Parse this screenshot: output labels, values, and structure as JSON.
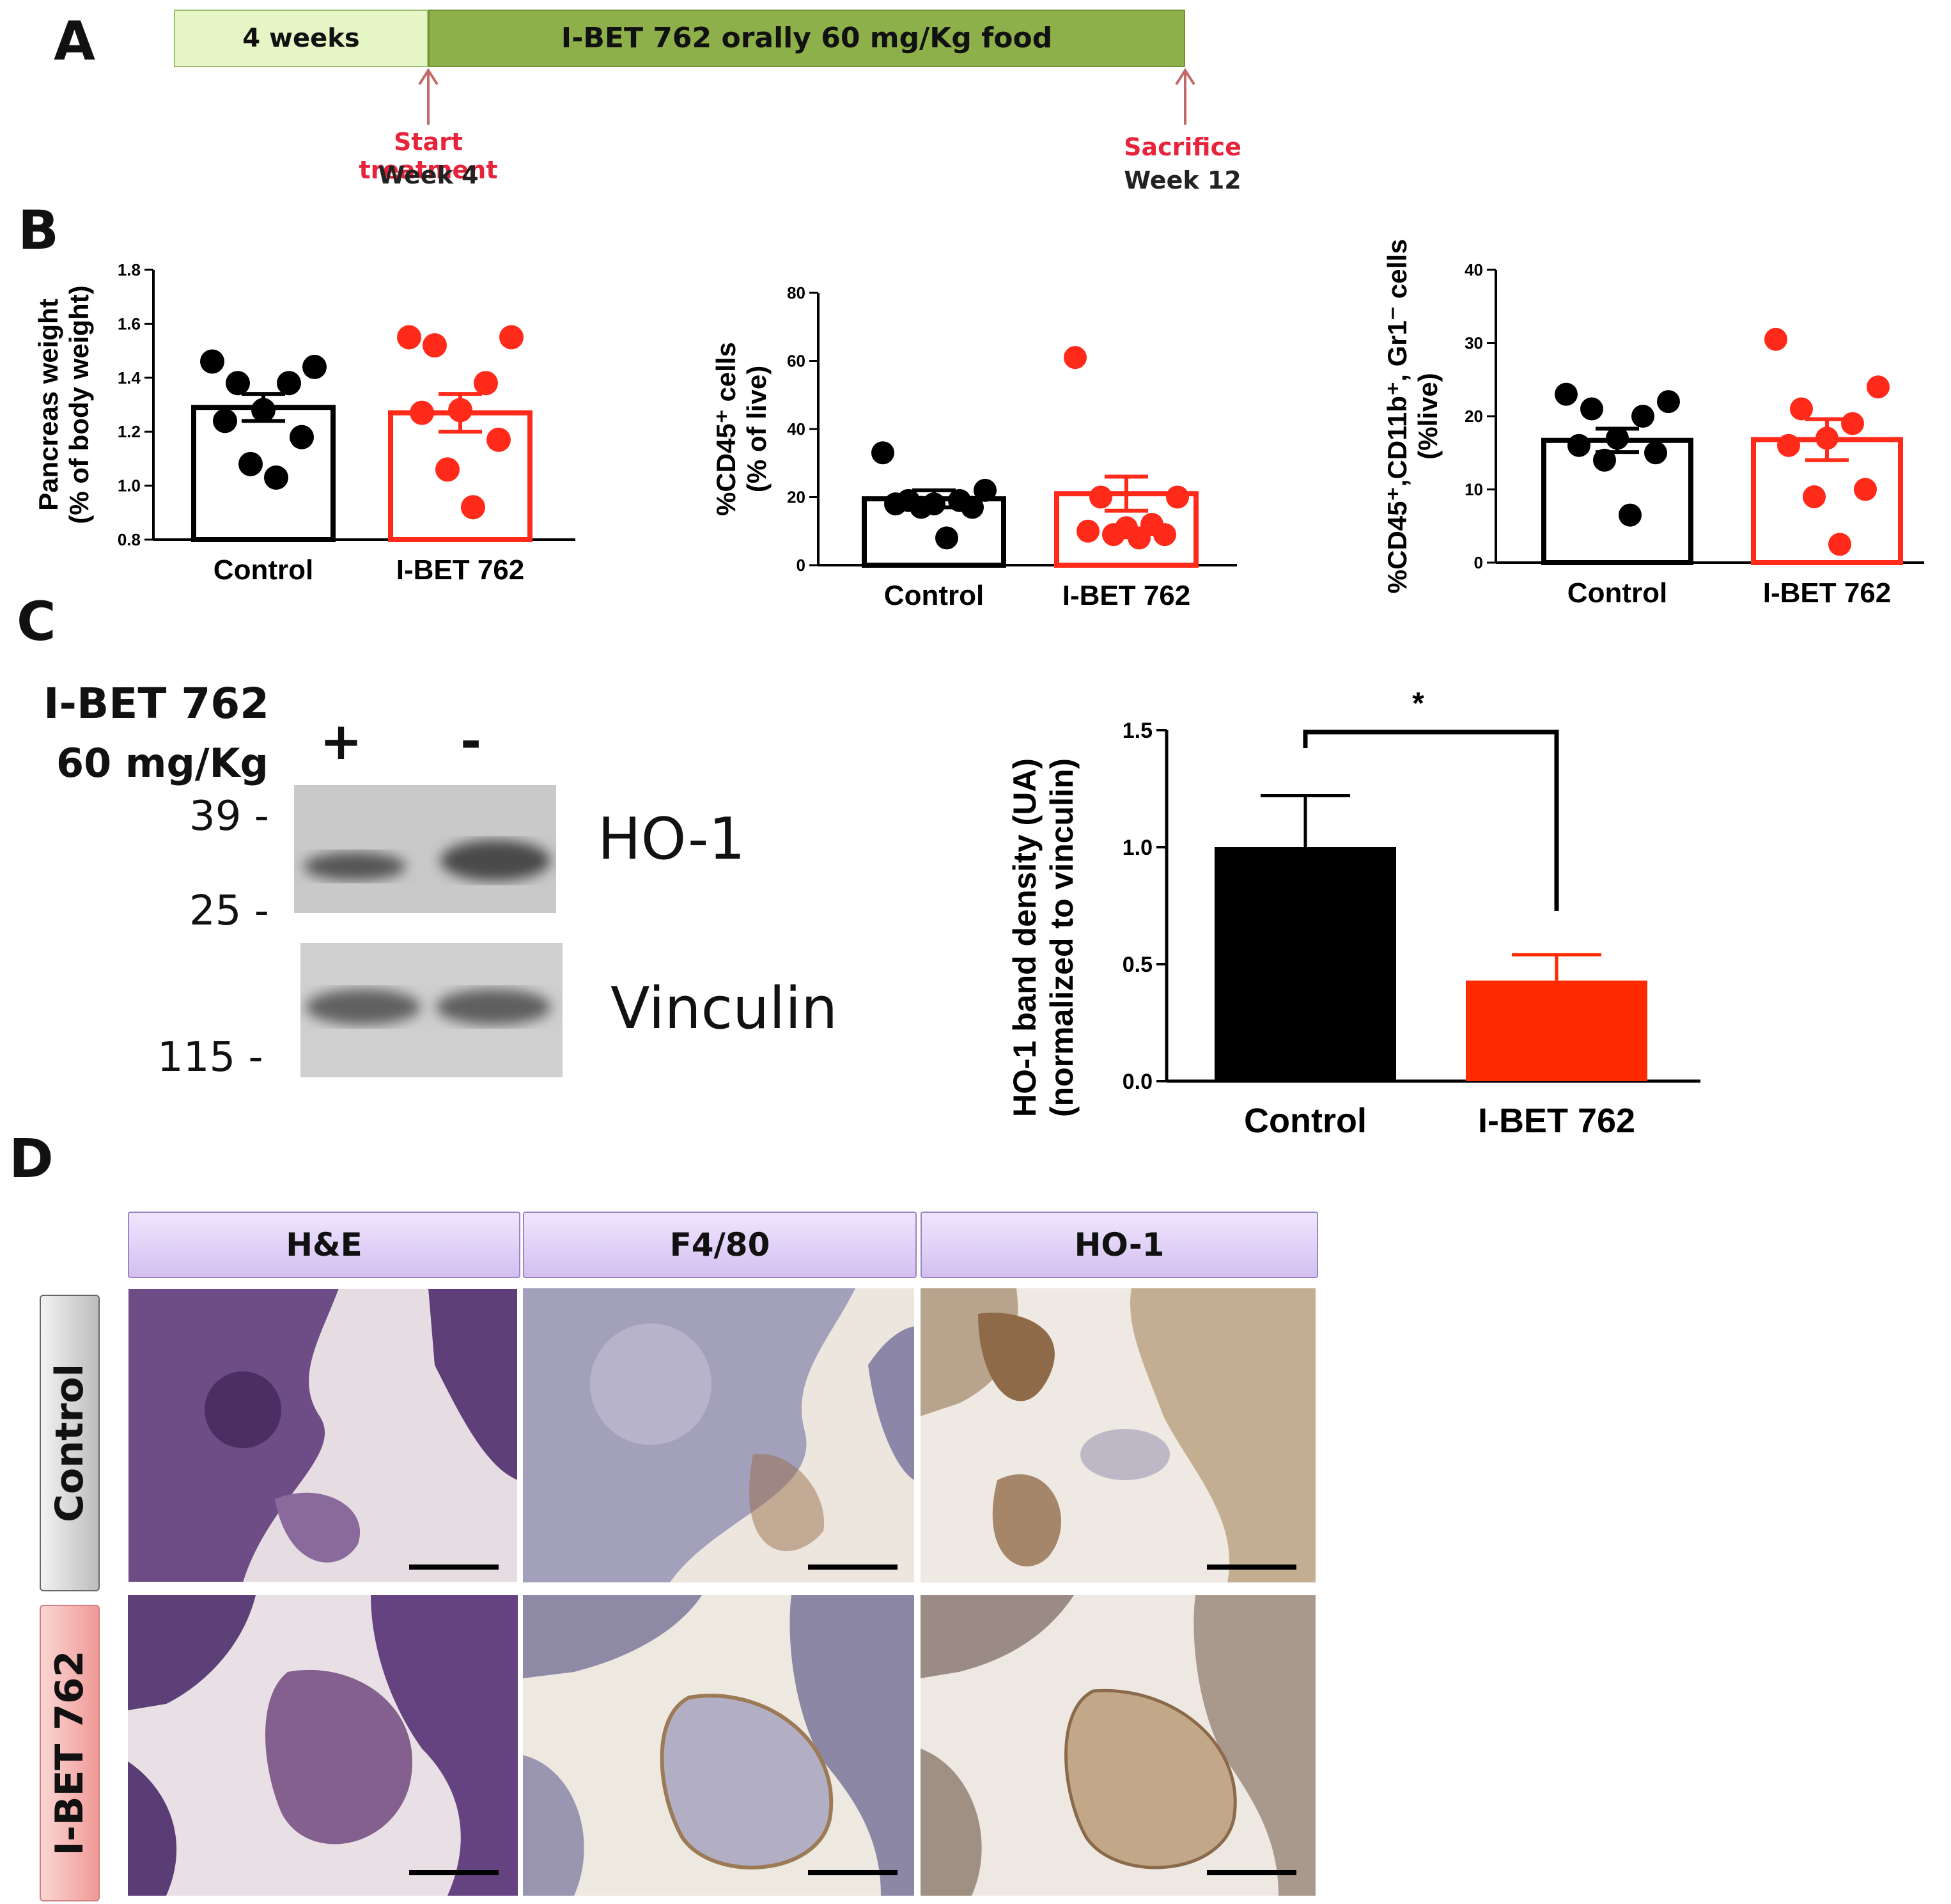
{
  "panel_letters": {
    "a": "A",
    "b": "B",
    "c": "C",
    "d": "D"
  },
  "timeline": {
    "segment1": "4 weeks",
    "segment2": "I-BET 762 orally 60 mg/Kg food",
    "start_label": "Start treatment",
    "start_week": "Week 4",
    "end_label": "Sacrifice",
    "end_week": "Week 12",
    "color_light": "#e6f5c6",
    "color_dark": "#8db04a",
    "arrow_color": "#c06a6a",
    "label_red": "#e8243c"
  },
  "chart_data": [
    {
      "type": "bar",
      "ylabel_lines": [
        "Pancreas weight",
        "(% of body weight)"
      ],
      "categories": [
        "Control",
        "I-BET 762"
      ],
      "ylim": [
        0.8,
        1.8
      ],
      "yticks": [
        "0.8",
        "1.0",
        "1.2",
        "1.4",
        "1.6",
        "1.8"
      ],
      "series": [
        {
          "values": [
            1.29,
            1.27
          ],
          "sem": [
            0.05,
            0.07
          ],
          "colors": [
            "#000000",
            "#ff2a1a"
          ]
        }
      ],
      "points": [
        [
          1.46,
          1.44,
          1.38,
          1.38,
          1.28,
          1.24,
          1.18,
          1.08,
          1.03
        ],
        [
          1.55,
          1.55,
          1.52,
          1.38,
          1.28,
          1.27,
          1.17,
          1.06,
          0.92
        ]
      ],
      "grid": false
    },
    {
      "type": "bar",
      "ylabel_lines": [
        "%CD45⁺ cells",
        "(% of live)"
      ],
      "categories": [
        "Control",
        "I-BET 762"
      ],
      "ylim": [
        0,
        80
      ],
      "yticks": [
        "0",
        "20",
        "40",
        "60",
        "80"
      ],
      "series": [
        {
          "values": [
            19.5,
            21
          ],
          "sem": [
            2.5,
            5
          ],
          "colors": [
            "#000000",
            "#ff2a1a"
          ]
        }
      ],
      "points": [
        [
          33,
          22,
          19,
          19,
          18,
          18,
          17,
          17,
          8
        ],
        [
          61,
          20,
          20,
          12,
          11,
          10,
          9,
          9,
          8
        ]
      ],
      "grid": false
    },
    {
      "type": "bar",
      "ylabel_lines": [
        "%CD45⁺,CD11b⁺, Gr1⁻ cells",
        "(%live)"
      ],
      "categories": [
        "Control",
        "I-BET 762"
      ],
      "ylim": [
        0,
        40
      ],
      "yticks": [
        "0",
        "10",
        "20",
        "30",
        "40"
      ],
      "series": [
        {
          "values": [
            16.7,
            16.8
          ],
          "sem": [
            1.6,
            2.8
          ],
          "colors": [
            "#000000",
            "#ff2a1a"
          ]
        }
      ],
      "points": [
        [
          23,
          22,
          21,
          20,
          17,
          16,
          15,
          14,
          6.5
        ],
        [
          30.5,
          24,
          21,
          19,
          17,
          16,
          10,
          9,
          2.5
        ]
      ],
      "grid": false
    },
    {
      "type": "bar",
      "ylabel_lines": [
        "HO-1 band density (UA)",
        "(normalized to vinculin)"
      ],
      "categories": [
        "Control",
        "I-BET 762"
      ],
      "ylim": [
        0,
        1.5
      ],
      "yticks": [
        "0.0",
        "0.5",
        "1.0",
        "1.5"
      ],
      "series": [
        {
          "values": [
            1.0,
            0.43
          ],
          "sem": [
            0.22,
            0.11
          ],
          "colors": [
            "#000000",
            "#ff2a00"
          ]
        }
      ],
      "annotation": "*",
      "grid": false
    }
  ],
  "western": {
    "treatment_line1": "I-BET 762",
    "treatment_line2": "60 mg/Kg",
    "lane_plus": "+",
    "lane_minus": "-",
    "mw_39": "39 -",
    "mw_25": "25 -",
    "mw_115": "115 -",
    "band1": "HO-1",
    "band2": "Vinculin"
  },
  "histology": {
    "columns": [
      "H&E",
      "F4/80",
      "HO-1"
    ],
    "rows": [
      "Control",
      "I-BET 762"
    ],
    "row_colors": [
      "#c9c9c9",
      "#f2b2b0"
    ],
    "stain_colors": [
      "#7a5a8e",
      "#b8b2c6",
      "#c8b49a"
    ]
  }
}
